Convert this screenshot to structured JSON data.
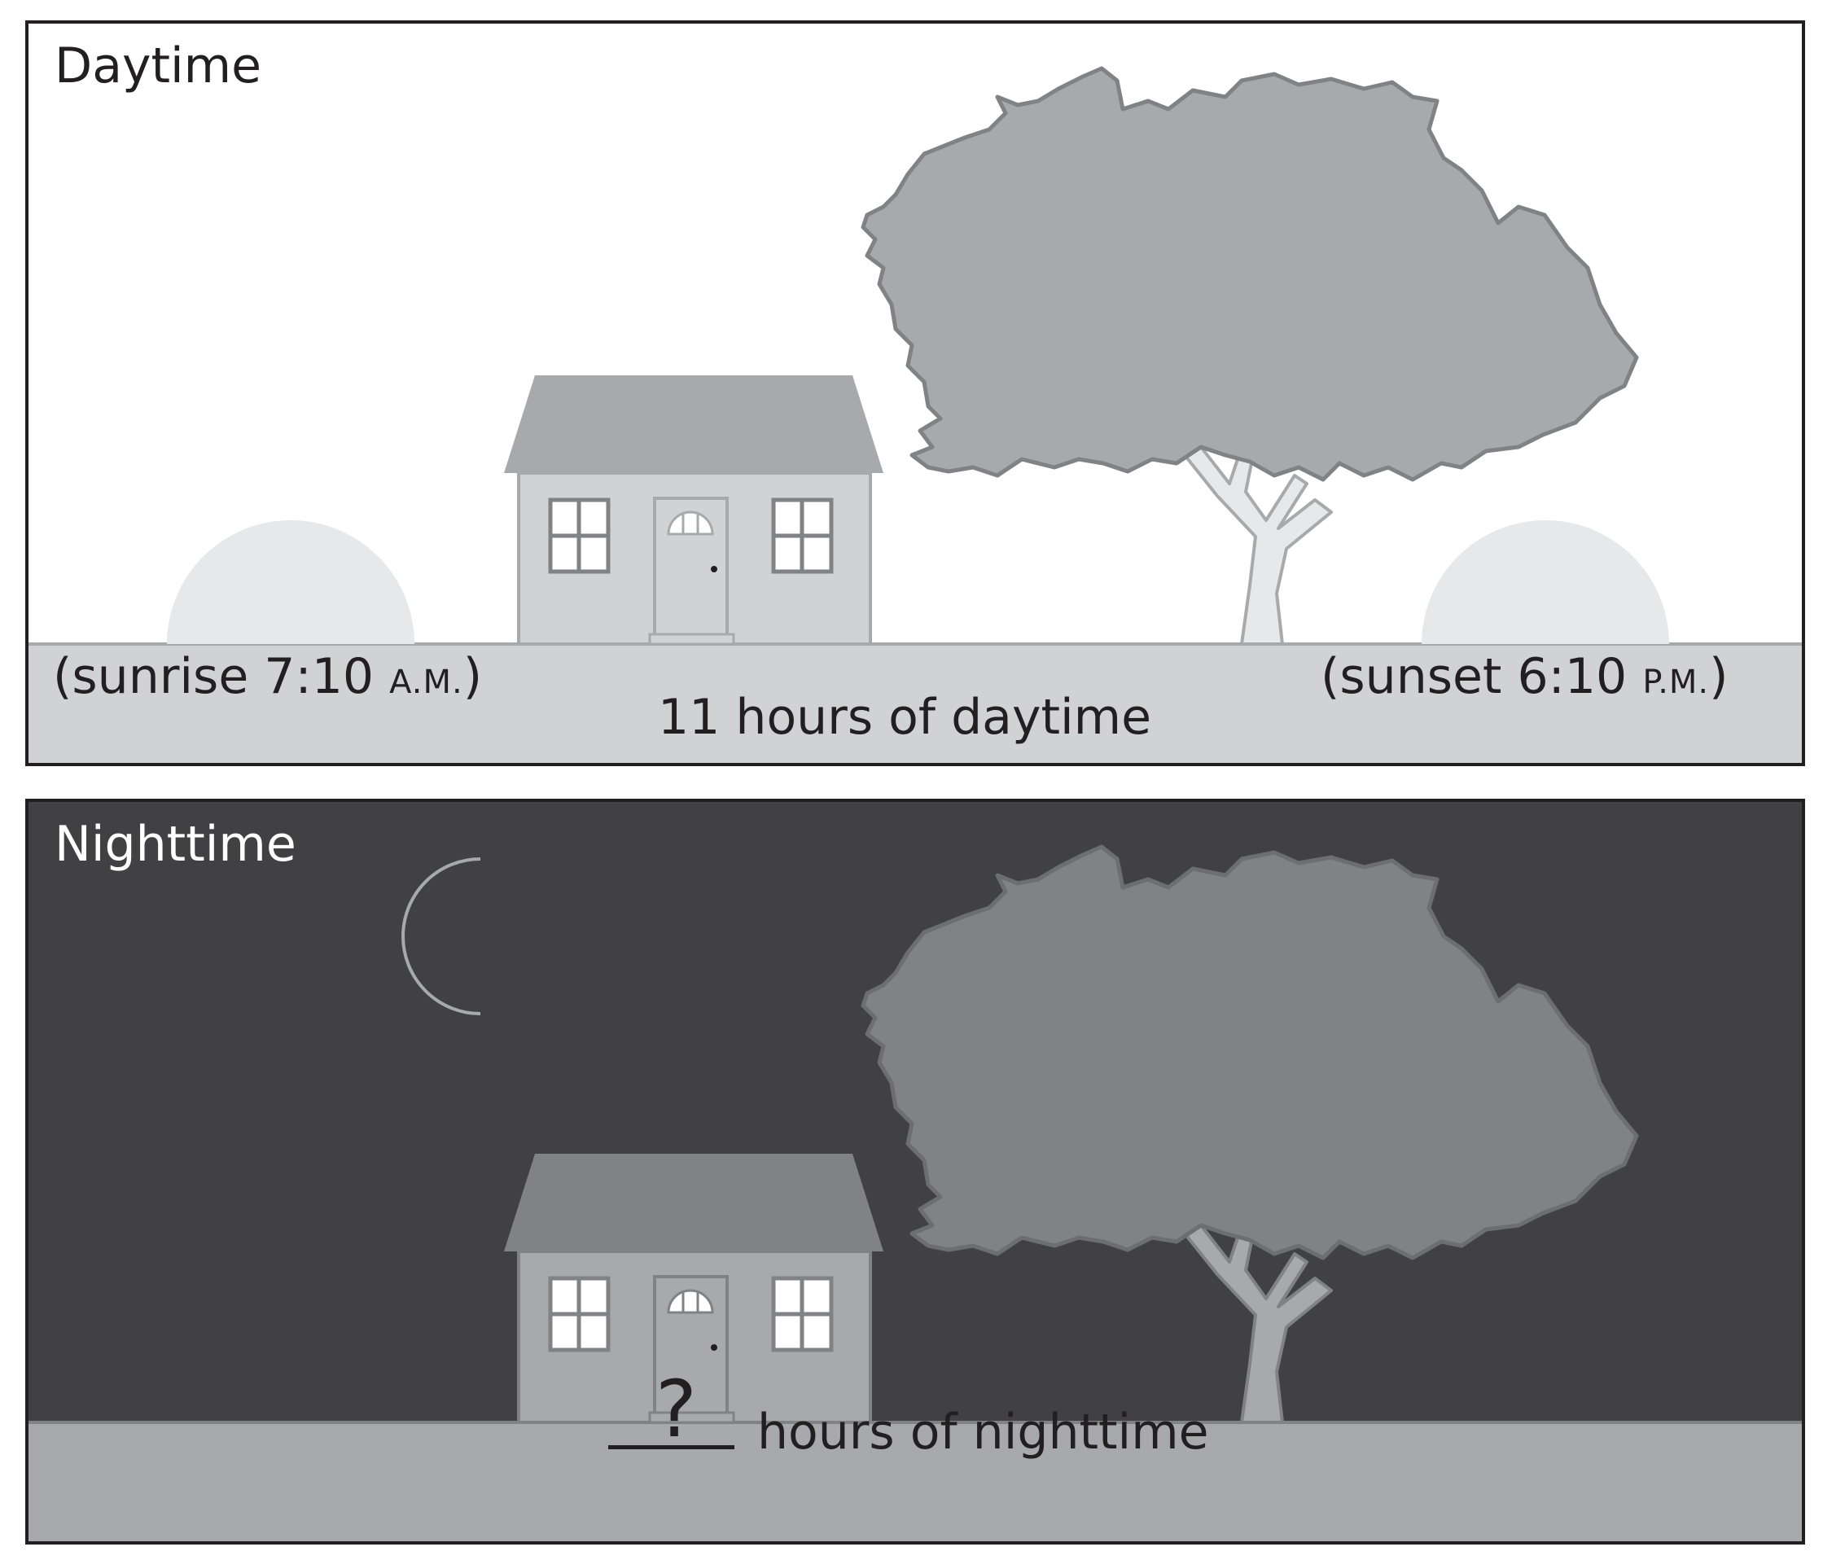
{
  "daytime": {
    "title": "Daytime",
    "sunrise_text": "(sunrise 7:10",
    "sunrise_ampm": "A.M.",
    "sunrise_close": ")",
    "sunset_text": "(sunset 6:10",
    "sunset_ampm": "P.M.",
    "sunset_close": ")",
    "hours_text": "11 hours of daytime"
  },
  "nighttime": {
    "title": "Nighttime",
    "unknown_symbol": "?",
    "hours_text": "hours of nighttime"
  },
  "colors": {
    "day_sky": "#ffffff",
    "day_ground": "#d1d2d4",
    "sun": "#e7e8e9",
    "night_sky": "#414143",
    "night_ground": "#a7a9ac",
    "day_tree": "#a7a9ac",
    "night_tree": "#808285",
    "moon": "#ffffff",
    "outline": "#231f20"
  },
  "icons": [
    "sun-icon",
    "moon-icon",
    "house-icon",
    "tree-icon"
  ]
}
